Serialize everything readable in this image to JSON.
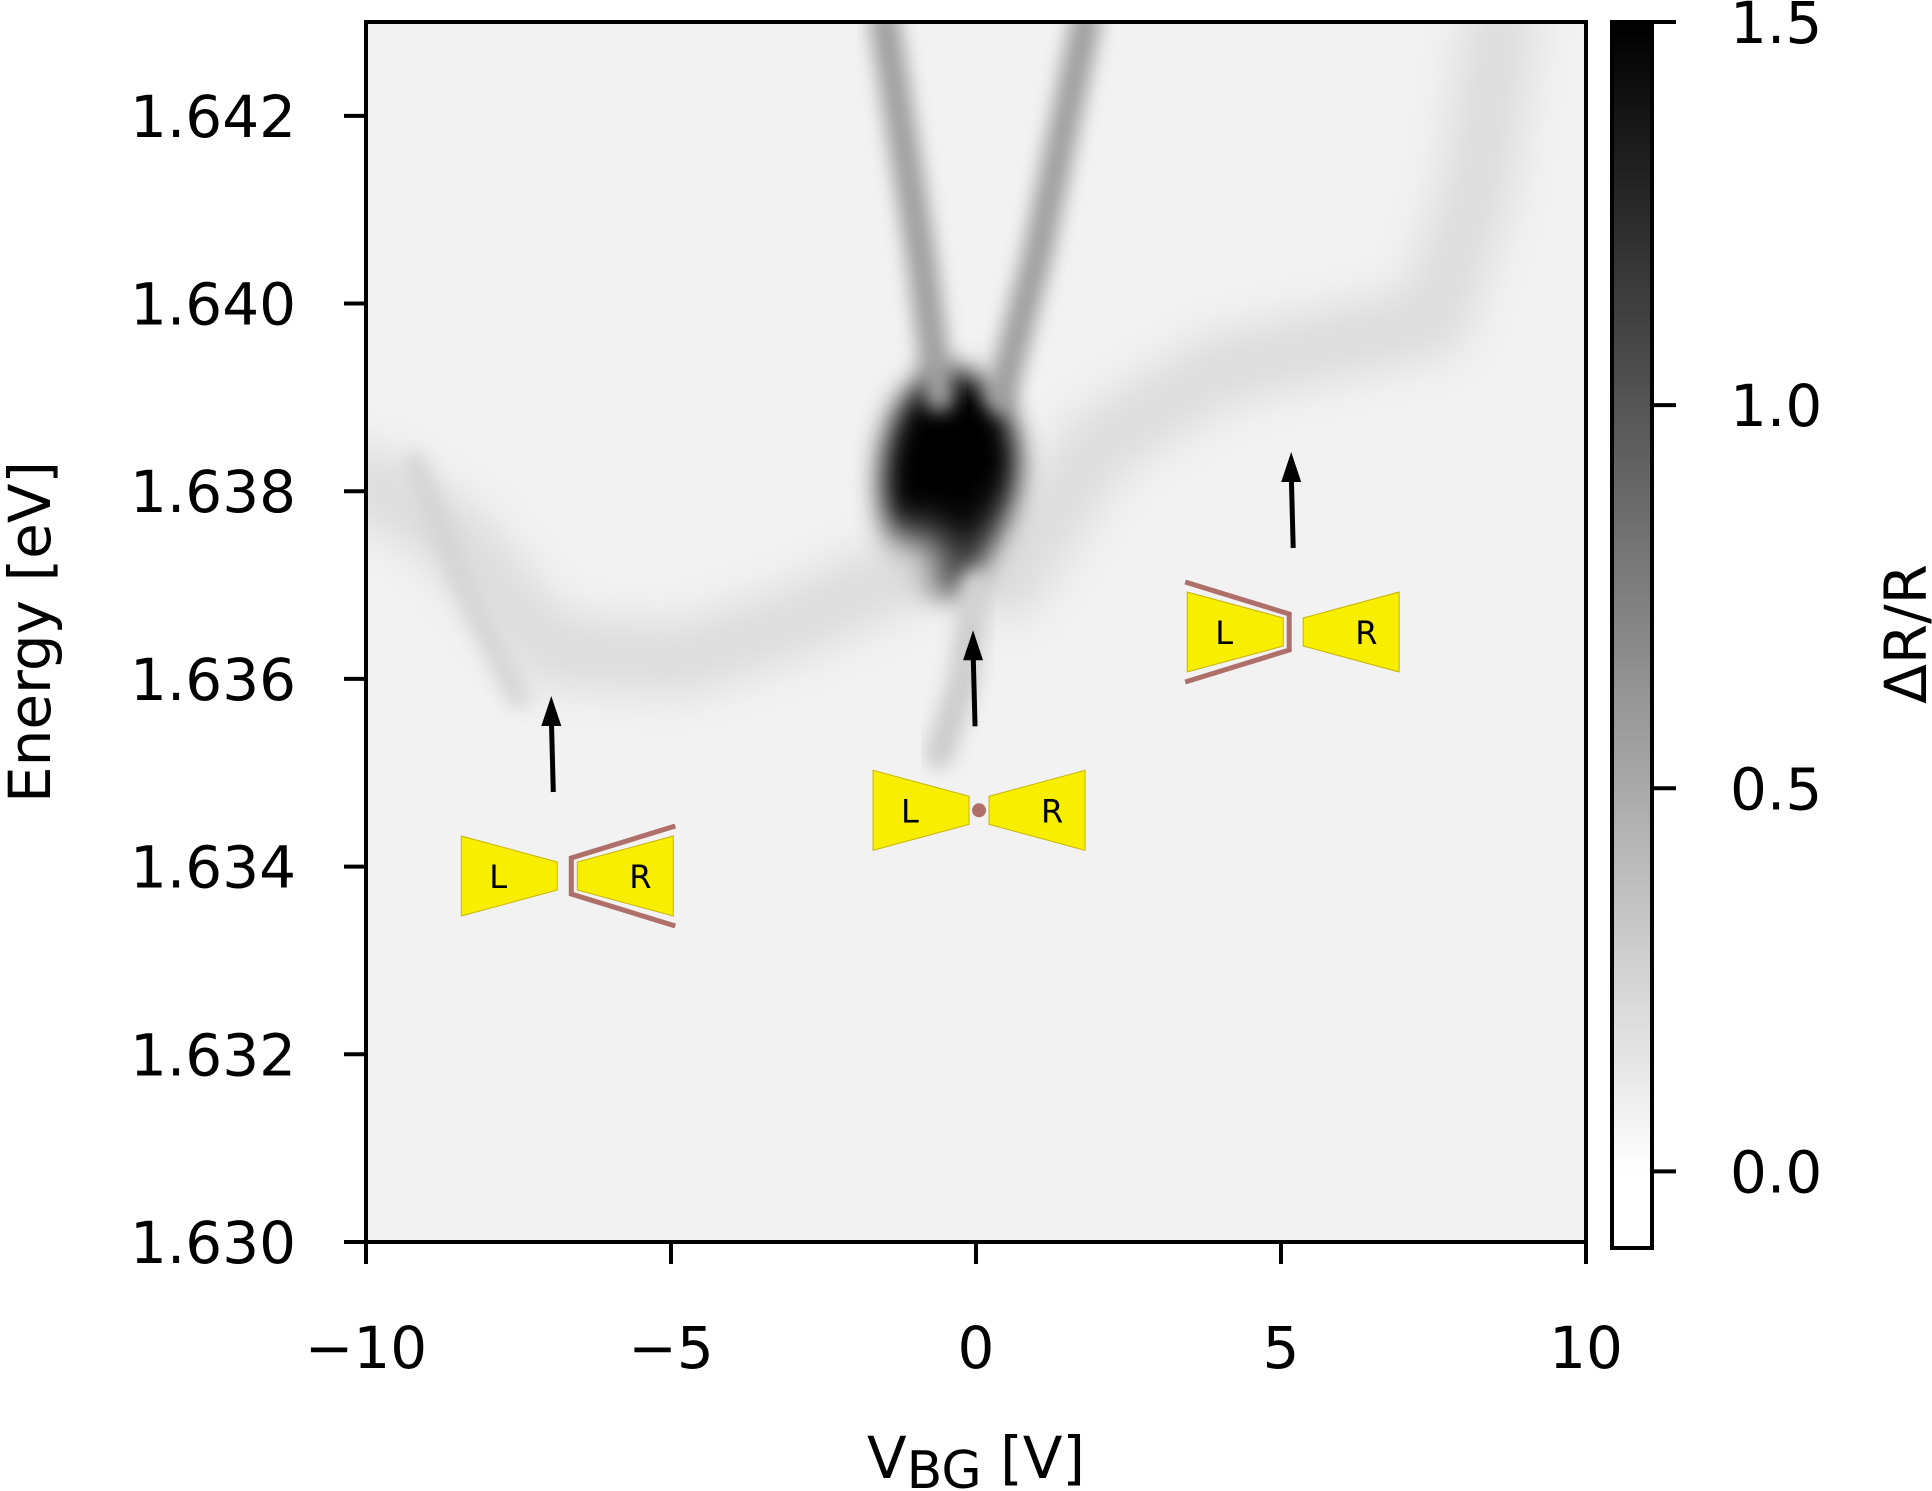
{
  "chart_data": {
    "type": "heatmap",
    "xlabel_main": "V",
    "xlabel_sub": "BG",
    "xlabel_unit": " [V]",
    "ylabel": "Energy [eV]",
    "colorbar_label": "ΔR/R",
    "xlim": [
      -10,
      10
    ],
    "ylim": [
      1.63,
      1.643
    ],
    "x_ticks": [
      -10,
      -5,
      0,
      5,
      10
    ],
    "x_tick_labels": [
      "−10",
      "−5",
      "0",
      "5",
      "10"
    ],
    "y_ticks": [
      1.63,
      1.632,
      1.634,
      1.636,
      1.638,
      1.64,
      1.642
    ],
    "y_tick_labels": [
      "1.630",
      "1.632",
      "1.634",
      "1.636",
      "1.638",
      "1.640",
      "1.642"
    ],
    "colorbar_range": [
      -0.1,
      1.5
    ],
    "colorbar_ticks": [
      0.0,
      0.5,
      1.0,
      1.5
    ],
    "colorbar_tick_labels": [
      "0.0",
      "0.5",
      "1.0",
      "1.5"
    ],
    "colormap": "gray_r",
    "features": [
      {
        "name": "dark-core",
        "x": -0.4,
        "y": 1.6381,
        "value": 1.5
      },
      {
        "name": "left-branch",
        "points": [
          [
            -1.5,
            1.643
          ],
          [
            -0.9,
            1.6405
          ],
          [
            -0.6,
            1.639
          ]
        ],
        "value": 0.5
      },
      {
        "name": "right-branch",
        "points": [
          [
            1.8,
            1.643
          ],
          [
            1.0,
            1.6405
          ],
          [
            0.4,
            1.639
          ]
        ],
        "value": 0.5
      },
      {
        "name": "lower-tail",
        "points": [
          [
            0.0,
            1.637
          ],
          [
            -0.2,
            1.636
          ],
          [
            -0.6,
            1.6352
          ]
        ],
        "value": 0.22
      },
      {
        "name": "left-arc",
        "points": [
          [
            -10,
            1.6381
          ],
          [
            -8.5,
            1.6375
          ],
          [
            -7.0,
            1.6363
          ],
          [
            -4.8,
            1.6362
          ],
          [
            -3.0,
            1.6366
          ],
          [
            -1.0,
            1.6372
          ]
        ],
        "value": 0.12
      },
      {
        "name": "right-arc",
        "points": [
          [
            0.5,
            1.637
          ],
          [
            2.0,
            1.6385
          ],
          [
            4.0,
            1.6393
          ],
          [
            6.0,
            1.6396
          ],
          [
            7.5,
            1.6398
          ],
          [
            8.2,
            1.6412
          ],
          [
            8.6,
            1.643
          ]
        ],
        "value": 0.12
      },
      {
        "name": "left-diagonal",
        "points": [
          [
            -9.2,
            1.6383
          ],
          [
            -8.4,
            1.637
          ],
          [
            -7.5,
            1.6358
          ]
        ],
        "value": 0.17
      }
    ],
    "insets": [
      {
        "x": -6.7,
        "y": 1.6339,
        "left_label": "L",
        "right_label": "R",
        "electron": "right"
      },
      {
        "x": 0.05,
        "y": 1.6346,
        "left_label": "L",
        "right_label": "R",
        "electron": "center"
      },
      {
        "x": 5.2,
        "y": 1.6365,
        "left_label": "L",
        "right_label": "R",
        "electron": "left"
      }
    ],
    "colors": {
      "gate": "#f7ee00",
      "wavefunction": "#b0706a",
      "arrow": "#000000"
    }
  }
}
